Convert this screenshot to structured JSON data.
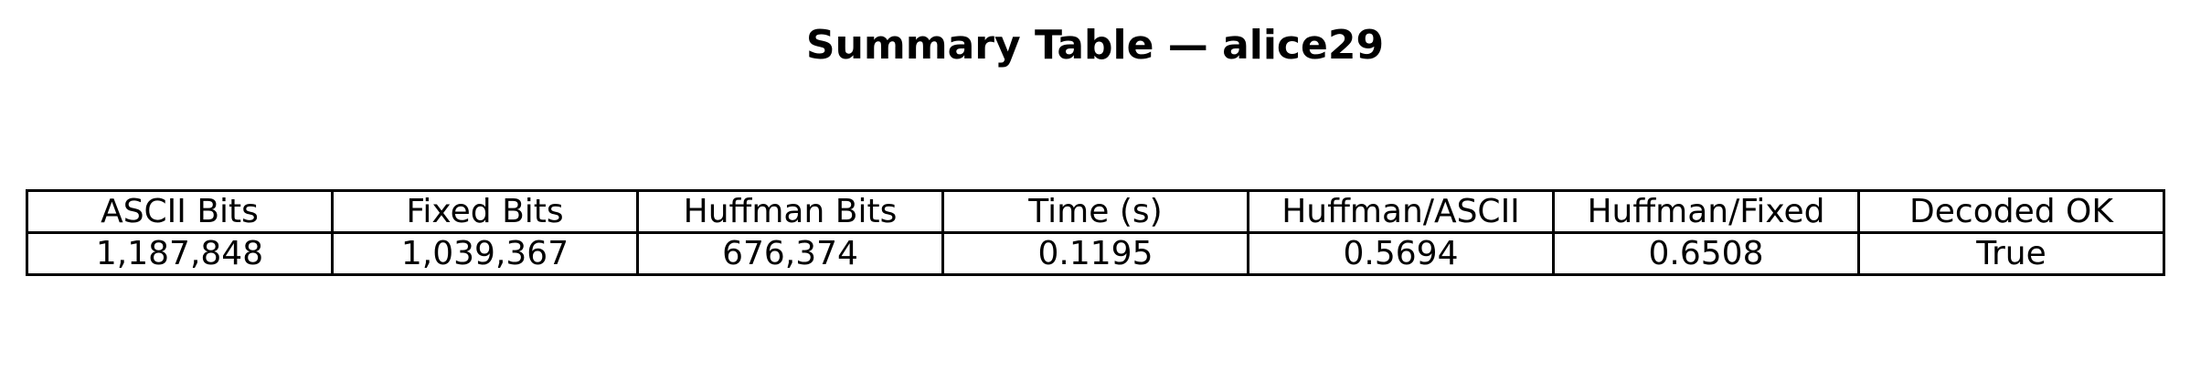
{
  "chart_data": {
    "type": "table",
    "title": "Summary Table — alice29",
    "columns": [
      "ASCII Bits",
      "Fixed Bits",
      "Huffman Bits",
      "Time (s)",
      "Huffman/ASCII",
      "Huffman/Fixed",
      "Decoded OK"
    ],
    "rows": [
      [
        "1,187,848",
        "1,039,367",
        "676,374",
        "0.1195",
        "0.5694",
        "0.6508",
        "True"
      ]
    ]
  }
}
